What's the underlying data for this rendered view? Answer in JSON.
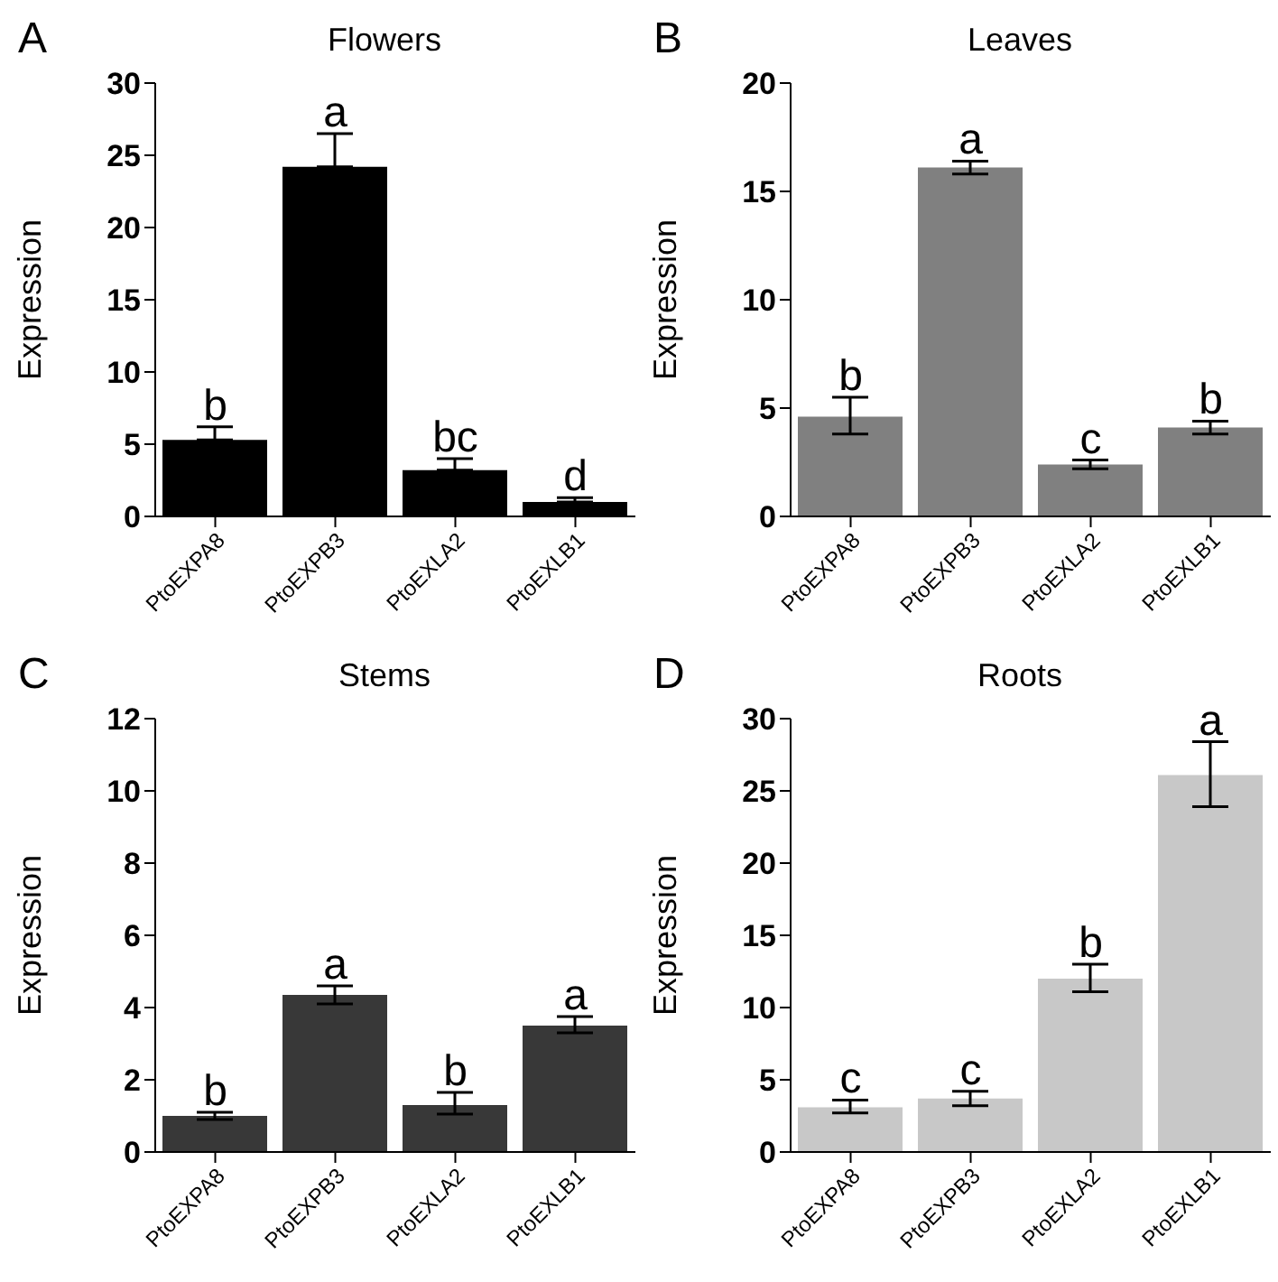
{
  "chart_data": [
    {
      "type": "bar",
      "title": "Flowers",
      "ylabel": "Expression",
      "categories": [
        "PtoEXPA8",
        "PtoEXPB3",
        "PtoEXLA2",
        "PtoEXLB1"
      ],
      "values": [
        5.3,
        24.2,
        3.2,
        1.0
      ],
      "errors": [
        [
          5.3,
          6.2
        ],
        [
          24.2,
          26.5
        ],
        [
          3.2,
          4.0
        ],
        [
          1.0,
          1.3
        ]
      ],
      "color": "#000000",
      "ylim": [
        0,
        30
      ],
      "yticks": [
        0,
        5,
        10,
        15,
        20,
        25,
        30
      ],
      "annotations": [
        "A",
        {
          "text": "b",
          "x": "PtoEXPA8",
          "y": 6.2
        },
        {
          "text": "a",
          "x": "PtoEXPB3",
          "y": 26.5
        },
        {
          "text": "bc",
          "x": "PtoEXLA2",
          "y": 4.0
        },
        {
          "text": "d",
          "x": "PtoEXLB1",
          "y": 1.3
        }
      ]
    },
    {
      "type": "bar",
      "title": "Leaves",
      "ylabel": "Expression",
      "categories": [
        "PtoEXPA8",
        "PtoEXPB3",
        "PtoEXLA2",
        "PtoEXLB1"
      ],
      "values": [
        4.6,
        16.1,
        2.4,
        4.1
      ],
      "errors": [
        [
          3.8,
          5.5
        ],
        [
          15.8,
          16.4
        ],
        [
          2.2,
          2.6
        ],
        [
          3.8,
          4.4
        ]
      ],
      "color": "#808080",
      "ylim": [
        0,
        20
      ],
      "yticks": [
        0,
        5,
        10,
        15,
        20
      ],
      "annotations": [
        "B",
        {
          "text": "b",
          "x": "PtoEXPA8",
          "y": 5.5
        },
        {
          "text": "a",
          "x": "PtoEXPB3",
          "y": 16.4
        },
        {
          "text": "c",
          "x": "PtoEXLA2",
          "y": 2.6
        },
        {
          "text": "b",
          "x": "PtoEXLB1",
          "y": 4.4
        }
      ]
    },
    {
      "type": "bar",
      "title": "Stems",
      "ylabel": "Expression",
      "categories": [
        "PtoEXPA8",
        "PtoEXPB3",
        "PtoEXLA2",
        "PtoEXLB1"
      ],
      "values": [
        1.0,
        4.35,
        1.3,
        3.5
      ],
      "errors": [
        [
          0.9,
          1.1
        ],
        [
          4.1,
          4.6
        ],
        [
          1.05,
          1.65
        ],
        [
          3.3,
          3.75
        ]
      ],
      "color": "#383838",
      "ylim": [
        0,
        12
      ],
      "yticks": [
        0,
        2,
        4,
        6,
        8,
        10,
        12
      ],
      "annotations": [
        "C",
        {
          "text": "b",
          "x": "PtoEXPA8",
          "y": 1.1
        },
        {
          "text": "a",
          "x": "PtoEXPB3",
          "y": 4.6
        },
        {
          "text": "b",
          "x": "PtoEXLA2",
          "y": 1.65
        },
        {
          "text": "a",
          "x": "PtoEXLB1",
          "y": 3.75
        }
      ]
    },
    {
      "type": "bar",
      "title": "Roots",
      "ylabel": "Expression",
      "categories": [
        "PtoEXPA8",
        "PtoEXPB3",
        "PtoEXLA2",
        "PtoEXLB1"
      ],
      "values": [
        3.1,
        3.7,
        12.0,
        26.1
      ],
      "errors": [
        [
          2.7,
          3.6
        ],
        [
          3.2,
          4.2
        ],
        [
          11.1,
          13.0
        ],
        [
          23.9,
          28.4
        ]
      ],
      "color": "#c8c8c8",
      "ylim": [
        0,
        30
      ],
      "yticks": [
        0,
        5,
        10,
        15,
        20,
        25,
        30
      ],
      "annotations": [
        "D",
        {
          "text": "c",
          "x": "PtoEXPA8",
          "y": 3.6
        },
        {
          "text": "c",
          "x": "PtoEXPB3",
          "y": 4.2
        },
        {
          "text": "b",
          "x": "PtoEXLA2",
          "y": 13.0
        },
        {
          "text": "a",
          "x": "PtoEXLB1",
          "y": 28.4
        }
      ]
    }
  ]
}
